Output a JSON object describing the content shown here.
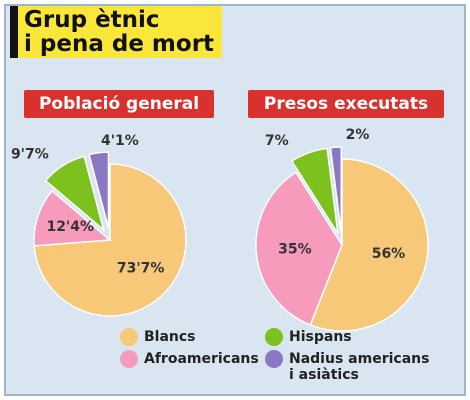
{
  "title_lines": [
    "Grup ètnic",
    "i pena de mort"
  ],
  "chart_data": [
    {
      "type": "pie",
      "title": "Població general",
      "categories": [
        "Blancs",
        "Afroamericans",
        "Hispans",
        "Nadius americans i asiàtics"
      ],
      "values": [
        73.7,
        12.4,
        9.7,
        4.1
      ],
      "value_labels": [
        "73'7%",
        "12'4%",
        "9'7%",
        "4'1%"
      ],
      "colors": [
        "#f6c878",
        "#f79bbd",
        "#7dc11e",
        "#8a78c4"
      ]
    },
    {
      "type": "pie",
      "title": "Presos executats",
      "categories": [
        "Blancs",
        "Afroamericans",
        "Hispans",
        "Nadius americans i asiàtics"
      ],
      "values": [
        56,
        35,
        7,
        2
      ],
      "value_labels": [
        "56%",
        "35%",
        "7%",
        "2%"
      ],
      "colors": [
        "#f6c878",
        "#f79bbd",
        "#7dc11e",
        "#8a78c4"
      ]
    }
  ]
}
